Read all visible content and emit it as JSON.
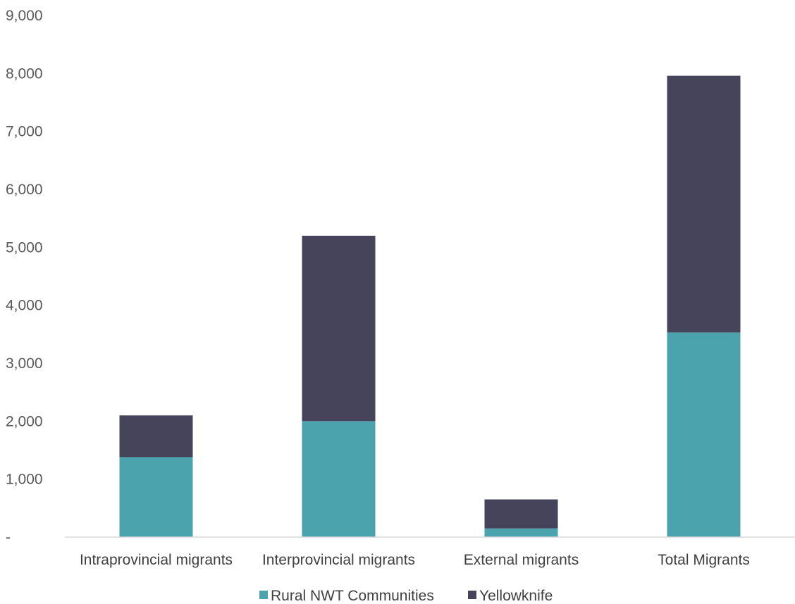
{
  "chart_data": {
    "type": "bar",
    "stacked": true,
    "categories": [
      "Intraprovincial migrants",
      "Interprovincial migrants",
      "External migrants",
      "Total Migrants"
    ],
    "series": [
      {
        "name": "Rural NWT Communities",
        "color": "#4BA3AD",
        "values": [
          1380,
          2000,
          150,
          3530
        ]
      },
      {
        "name": "Yellowknife",
        "color": "#45445A",
        "values": [
          720,
          3200,
          500,
          4430
        ]
      }
    ],
    "ylim": [
      0,
      9000
    ],
    "yticks": [
      {
        "value": 0,
        "label": "-"
      },
      {
        "value": 1000,
        "label": "1,000"
      },
      {
        "value": 2000,
        "label": "2,000"
      },
      {
        "value": 3000,
        "label": "3,000"
      },
      {
        "value": 4000,
        "label": "4,000"
      },
      {
        "value": 5000,
        "label": "5,000"
      },
      {
        "value": 6000,
        "label": "6,000"
      },
      {
        "value": 7000,
        "label": "7,000"
      },
      {
        "value": 8000,
        "label": "8,000"
      },
      {
        "value": 9000,
        "label": "9,000"
      }
    ],
    "grid": false,
    "legend_position": "bottom",
    "title": "",
    "xlabel": "",
    "ylabel": ""
  }
}
